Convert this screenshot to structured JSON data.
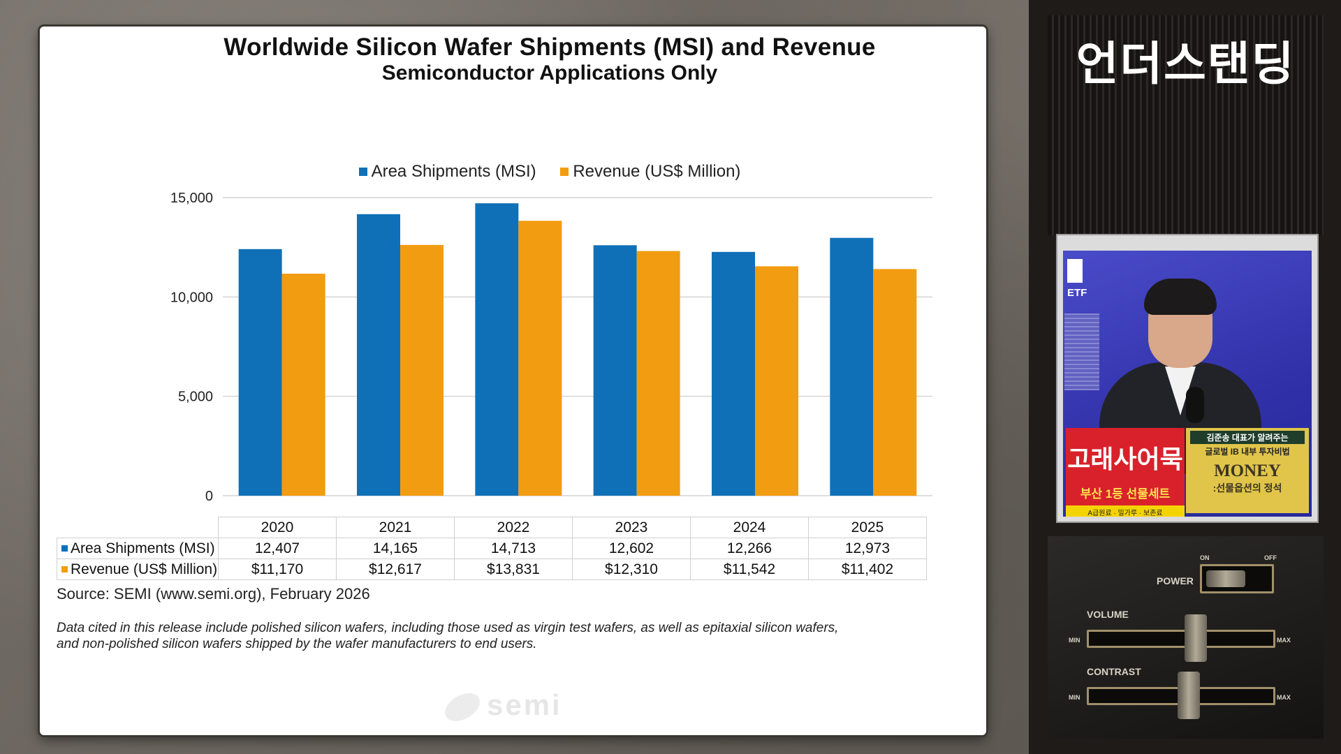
{
  "slide": {
    "title": "Worldwide Silicon Wafer Shipments (MSI) and Revenue",
    "subtitle": "Semiconductor Applications Only",
    "source": "Source: SEMI (www.semi.org), February 2026",
    "note": "Data cited in this release include polished silicon wafers, including those used as virgin test wafers, as well as epitaxial silicon wafers, and non-polished silicon wafers shipped by the wafer manufacturers to end users.",
    "watermark": "semi"
  },
  "chart_data": {
    "type": "bar",
    "title": "Worldwide Silicon Wafer Shipments (MSI) and Revenue",
    "subtitle": "Semiconductor Applications Only",
    "categories": [
      "2020",
      "2021",
      "2022",
      "2023",
      "2024",
      "2025"
    ],
    "series": [
      {
        "name": "Area Shipments (MSI)",
        "color": "#0f70b7",
        "values": [
          12407,
          14165,
          14713,
          12602,
          12266,
          12973
        ],
        "labels": [
          "12,407",
          "14,165",
          "14,713",
          "12,602",
          "12,266",
          "12,973"
        ]
      },
      {
        "name": "Revenue (US$ Million)",
        "color": "#f29c11",
        "values": [
          11170,
          12617,
          13831,
          12310,
          11542,
          11402
        ],
        "labels": [
          "$11,170",
          "$12,617",
          "$13,831",
          "$12,310",
          "$11,542",
          "$11,402"
        ]
      }
    ],
    "yticks": [
      "0",
      "5,000",
      "10,000",
      "15,000"
    ],
    "ytick_values": [
      0,
      5000,
      10000,
      15000
    ],
    "ylim": [
      0,
      15000
    ],
    "grid": true,
    "legend_position": "top"
  },
  "sidebar": {
    "channel_name": "언더스탠딩",
    "video": {
      "etf_text": "ETF",
      "ad_left_title": "고래사어묵",
      "ad_left_sub": "부산 1등 선물세트",
      "ad_left_tiny": "A급원료 · 밀가루 · 보존료",
      "ad_right_top": "김준송 대표가 알려주는",
      "ad_right_mid": "글로벌 IB 내부 투자비법",
      "ad_right_money": "MONEY",
      "ad_right_sub": ":선물옵션의 정석"
    },
    "controls": {
      "power": "POWER",
      "on": "ON",
      "off": "OFF",
      "volume": "VOLUME",
      "contrast": "CONTRAST",
      "min": "MIN",
      "max": "MAX"
    }
  }
}
